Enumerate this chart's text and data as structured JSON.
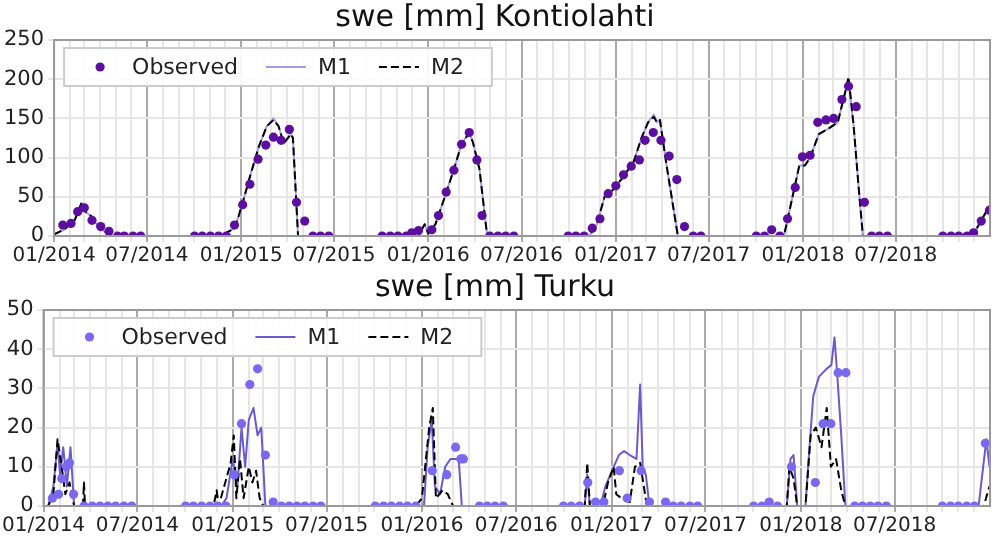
{
  "chart_data": [
    {
      "type": "line",
      "title": "swe [mm] Kontiolahti",
      "xlim": [
        "2014-01",
        "2019-01"
      ],
      "ylim": [
        0,
        250
      ],
      "yticks": [
        0,
        50,
        100,
        150,
        200,
        250
      ],
      "grid": true,
      "legend": "top left",
      "xticks": [
        {
          "value": "2014-01",
          "label": "01/2014"
        },
        {
          "value": "2014-02",
          "label": null
        },
        {
          "value": "2014-03",
          "label": null
        },
        {
          "value": "2014-04",
          "label": null
        },
        {
          "value": "2014-05",
          "label": null
        },
        {
          "value": "2014-06",
          "label": null
        },
        {
          "value": "2014-07",
          "label": "07/2014"
        },
        {
          "value": "2014-08",
          "label": null
        },
        {
          "value": "2014-09",
          "label": null
        },
        {
          "value": "2014-10",
          "label": null
        },
        {
          "value": "2014-11",
          "label": null
        },
        {
          "value": "2014-12",
          "label": null
        },
        {
          "value": "2015-01",
          "label": "01/2015"
        },
        {
          "value": "2015-02",
          "label": null
        },
        {
          "value": "2015-03",
          "label": null
        },
        {
          "value": "2015-04",
          "label": null
        },
        {
          "value": "2015-05",
          "label": null
        },
        {
          "value": "2015-06",
          "label": null
        },
        {
          "value": "2015-07",
          "label": "07/2015"
        },
        {
          "value": "2015-08",
          "label": null
        },
        {
          "value": "2015-09",
          "label": null
        },
        {
          "value": "2015-10",
          "label": null
        },
        {
          "value": "2015-11",
          "label": null
        },
        {
          "value": "2015-12",
          "label": null
        },
        {
          "value": "2016-01",
          "label": "01/2016"
        },
        {
          "value": "2016-02",
          "label": null
        },
        {
          "value": "2016-03",
          "label": null
        },
        {
          "value": "2016-04",
          "label": null
        },
        {
          "value": "2016-05",
          "label": null
        },
        {
          "value": "2016-06",
          "label": null
        },
        {
          "value": "2016-07",
          "label": "07/2016"
        },
        {
          "value": "2016-08",
          "label": null
        },
        {
          "value": "2016-09",
          "label": null
        },
        {
          "value": "2016-10",
          "label": null
        },
        {
          "value": "2016-11",
          "label": null
        },
        {
          "value": "2016-12",
          "label": null
        },
        {
          "value": "2017-01",
          "label": "01/2017"
        },
        {
          "value": "2017-02",
          "label": null
        },
        {
          "value": "2017-03",
          "label": null
        },
        {
          "value": "2017-04",
          "label": null
        },
        {
          "value": "2017-05",
          "label": null
        },
        {
          "value": "2017-06",
          "label": null
        },
        {
          "value": "2017-07",
          "label": "07/2017"
        },
        {
          "value": "2017-08",
          "label": null
        },
        {
          "value": "2017-09",
          "label": null
        },
        {
          "value": "2017-10",
          "label": null
        },
        {
          "value": "2017-11",
          "label": null
        },
        {
          "value": "2017-12",
          "label": null
        },
        {
          "value": "2018-01",
          "label": "01/2018"
        },
        {
          "value": "2018-02",
          "label": null
        },
        {
          "value": "2018-03",
          "label": null
        },
        {
          "value": "2018-04",
          "label": null
        },
        {
          "value": "2018-05",
          "label": null
        },
        {
          "value": "2018-06",
          "label": null
        },
        {
          "value": "2018-07",
          "label": "07/2018"
        },
        {
          "value": "2018-08",
          "label": null
        },
        {
          "value": "2018-09",
          "label": null
        },
        {
          "value": "2018-10",
          "label": null
        },
        {
          "value": "2018-11",
          "label": null
        },
        {
          "value": "2018-12",
          "label": null
        }
      ],
      "series": [
        {
          "name": "Observed",
          "type": "scatter",
          "marker": "circle",
          "color": "#5c0f9e",
          "x": [
            "2014-01-18",
            "2014-02-03",
            "2014-02-16",
            "2014-03-01",
            "2014-03-16",
            "2014-04-02",
            "2014-04-18",
            "2014-05-05",
            "2014-05-18",
            "2014-06-04",
            "2014-06-19",
            "2014-10-02",
            "2014-10-17",
            "2014-11-02",
            "2014-11-18",
            "2014-12-03",
            "2014-12-19",
            "2015-01-04",
            "2015-01-18",
            "2015-02-03",
            "2015-02-18",
            "2015-03-05",
            "2015-03-20",
            "2015-04-05",
            "2015-04-19",
            "2015-05-05",
            "2015-05-21",
            "2015-06-05",
            "2015-06-21",
            "2015-10-03",
            "2015-10-19",
            "2015-11-03",
            "2015-11-19",
            "2015-11-30",
            "2015-12-13",
            "2016-01-08",
            "2016-01-21",
            "2016-02-05",
            "2016-02-20",
            "2016-03-06",
            "2016-03-21",
            "2016-04-05",
            "2016-04-15",
            "2016-04-30",
            "2016-05-16",
            "2016-05-31",
            "2016-06-16",
            "2016-09-30",
            "2016-10-15",
            "2016-10-31",
            "2016-11-16",
            "2016-12-01",
            "2016-12-17",
            "2017-01-01",
            "2017-01-16",
            "2017-01-31",
            "2017-02-16",
            "2017-02-27",
            "2017-03-15",
            "2017-03-30",
            "2017-04-15",
            "2017-04-30",
            "2017-05-15",
            "2017-06-01",
            "2017-06-16",
            "2017-10-02",
            "2017-10-18",
            "2017-11-01",
            "2017-11-17",
            "2017-12-02",
            "2017-12-17",
            "2017-12-31",
            "2018-01-15",
            "2018-01-30",
            "2018-02-15",
            "2018-03-02",
            "2018-03-18",
            "2018-03-31",
            "2018-04-15",
            "2018-05-01",
            "2018-05-15",
            "2018-05-30",
            "2018-06-15",
            "2018-10-01",
            "2018-10-17",
            "2018-11-01",
            "2018-11-17",
            "2018-11-30",
            "2018-12-15",
            "2018-12-31"
          ],
          "values": [
            14,
            16,
            31,
            36,
            20,
            12,
            6,
            0,
            0,
            0,
            0,
            0,
            0,
            0,
            0,
            0,
            14,
            40,
            66,
            98,
            116,
            126,
            122,
            136,
            43,
            19,
            0,
            0,
            0,
            0,
            0,
            0,
            0,
            4,
            7,
            8,
            26,
            56,
            84,
            117,
            132,
            97,
            26,
            0,
            0,
            0,
            0,
            0,
            0,
            0,
            10,
            22,
            54,
            64,
            78,
            89,
            97,
            122,
            132,
            122,
            102,
            72,
            12,
            0,
            0,
            0,
            0,
            8,
            0,
            22,
            62,
            101,
            103,
            145,
            148,
            150,
            174,
            191,
            165,
            43,
            0,
            0,
            0,
            0,
            0,
            0,
            0,
            4,
            19,
            33
          ]
        },
        {
          "name": "M1",
          "type": "line",
          "marker": "none",
          "line_style": "solid",
          "color": "#a49be8",
          "x": [
            "2014-01-01",
            "2014-01-20",
            "2014-02-10",
            "2014-02-24",
            "2014-03-05",
            "2014-03-15",
            "2014-03-25",
            "2014-04-10",
            "2014-04-25",
            "2014-11-25",
            "2014-12-05",
            "2014-12-20",
            "2015-01-05",
            "2015-01-20",
            "2015-02-05",
            "2015-02-20",
            "2015-03-05",
            "2015-03-15",
            "2015-03-25",
            "2015-04-08",
            "2015-04-12",
            "2015-04-22",
            "2015-11-20",
            "2015-12-01",
            "2015-12-15",
            "2015-12-25",
            "2016-01-01",
            "2016-01-15",
            "2016-02-05",
            "2016-02-20",
            "2016-03-05",
            "2016-03-20",
            "2016-03-28",
            "2016-04-10",
            "2016-04-25",
            "2016-11-10",
            "2016-11-25",
            "2016-12-10",
            "2016-12-25",
            "2017-01-15",
            "2017-02-05",
            "2017-02-20",
            "2017-03-05",
            "2017-03-16",
            "2017-03-22",
            "2017-03-28",
            "2017-04-10",
            "2017-05-02",
            "2017-11-25",
            "2017-12-10",
            "2017-12-25",
            "2018-01-05",
            "2018-01-15",
            "2018-02-01",
            "2018-02-20",
            "2018-03-10",
            "2018-03-25",
            "2018-03-31",
            "2018-04-10",
            "2018-04-20",
            "2018-04-28",
            "2018-11-28",
            "2018-12-15",
            "2018-12-31"
          ],
          "values": [
            2,
            8,
            20,
            42,
            30,
            25,
            15,
            5,
            0,
            0,
            5,
            10,
            45,
            80,
            115,
            140,
            150,
            140,
            118,
            130,
            125,
            0,
            0,
            5,
            3,
            15,
            3,
            15,
            55,
            85,
            115,
            133,
            120,
            85,
            0,
            0,
            15,
            50,
            58,
            75,
            95,
            125,
            145,
            155,
            145,
            148,
            90,
            0,
            0,
            45,
            90,
            90,
            100,
            130,
            137,
            145,
            185,
            200,
            140,
            60,
            0,
            0,
            20,
            38
          ]
        },
        {
          "name": "M2",
          "type": "line",
          "marker": "none",
          "line_style": "dashed",
          "color": "#000000",
          "x": [
            "2014-01-01",
            "2014-01-20",
            "2014-02-10",
            "2014-02-24",
            "2014-03-05",
            "2014-03-15",
            "2014-03-25",
            "2014-04-10",
            "2014-04-25",
            "2014-11-25",
            "2014-12-05",
            "2014-12-20",
            "2015-01-05",
            "2015-01-20",
            "2015-02-05",
            "2015-02-20",
            "2015-03-05",
            "2015-03-15",
            "2015-03-25",
            "2015-04-08",
            "2015-04-12",
            "2015-04-22",
            "2015-11-20",
            "2015-12-01",
            "2015-12-15",
            "2015-12-25",
            "2016-01-01",
            "2016-01-15",
            "2016-02-05",
            "2016-02-20",
            "2016-03-05",
            "2016-03-20",
            "2016-03-28",
            "2016-04-10",
            "2016-04-25",
            "2016-11-10",
            "2016-11-25",
            "2016-12-10",
            "2016-12-25",
            "2017-01-15",
            "2017-02-05",
            "2017-02-20",
            "2017-03-05",
            "2017-03-16",
            "2017-03-22",
            "2017-03-28",
            "2017-04-10",
            "2017-05-02",
            "2017-11-25",
            "2017-12-10",
            "2017-12-25",
            "2018-01-05",
            "2018-01-15",
            "2018-02-01",
            "2018-02-20",
            "2018-03-10",
            "2018-03-25",
            "2018-03-31",
            "2018-04-10",
            "2018-04-20",
            "2018-04-28",
            "2018-11-28",
            "2018-12-15",
            "2018-12-31"
          ],
          "values": [
            2,
            8,
            20,
            43,
            30,
            25,
            15,
            5,
            0,
            0,
            5,
            10,
            45,
            80,
            115,
            140,
            148,
            140,
            118,
            130,
            125,
            0,
            0,
            5,
            3,
            15,
            3,
            15,
            55,
            85,
            115,
            131,
            120,
            85,
            0,
            0,
            15,
            50,
            58,
            75,
            95,
            125,
            145,
            152,
            145,
            148,
            90,
            0,
            0,
            45,
            90,
            90,
            100,
            130,
            137,
            145,
            185,
            203,
            140,
            60,
            0,
            0,
            20,
            38
          ]
        }
      ]
    },
    {
      "type": "line",
      "title": "swe [mm] Turku",
      "xlim": [
        "2014-01",
        "2019-01"
      ],
      "ylim": [
        0,
        50
      ],
      "yticks": [
        0,
        10,
        20,
        30,
        40,
        50
      ],
      "grid": true,
      "legend": "top left",
      "xticks": [
        {
          "value": "2014-01",
          "label": "01/2014"
        },
        {
          "value": "2014-02",
          "label": null
        },
        {
          "value": "2014-03",
          "label": null
        },
        {
          "value": "2014-04",
          "label": null
        },
        {
          "value": "2014-05",
          "label": null
        },
        {
          "value": "2014-06",
          "label": null
        },
        {
          "value": "2014-07",
          "label": "07/2014"
        },
        {
          "value": "2014-08",
          "label": null
        },
        {
          "value": "2014-09",
          "label": null
        },
        {
          "value": "2014-10",
          "label": null
        },
        {
          "value": "2014-11",
          "label": null
        },
        {
          "value": "2014-12",
          "label": null
        },
        {
          "value": "2015-01",
          "label": "01/2015"
        },
        {
          "value": "2015-02",
          "label": null
        },
        {
          "value": "2015-03",
          "label": null
        },
        {
          "value": "2015-04",
          "label": null
        },
        {
          "value": "2015-05",
          "label": null
        },
        {
          "value": "2015-06",
          "label": null
        },
        {
          "value": "2015-07",
          "label": "07/2015"
        },
        {
          "value": "2015-08",
          "label": null
        },
        {
          "value": "2015-09",
          "label": null
        },
        {
          "value": "2015-10",
          "label": null
        },
        {
          "value": "2015-11",
          "label": null
        },
        {
          "value": "2015-12",
          "label": null
        },
        {
          "value": "2016-01",
          "label": "01/2016"
        },
        {
          "value": "2016-02",
          "label": null
        },
        {
          "value": "2016-03",
          "label": null
        },
        {
          "value": "2016-04",
          "label": null
        },
        {
          "value": "2016-05",
          "label": null
        },
        {
          "value": "2016-06",
          "label": null
        },
        {
          "value": "2016-07",
          "label": "07/2016"
        },
        {
          "value": "2016-08",
          "label": null
        },
        {
          "value": "2016-09",
          "label": null
        },
        {
          "value": "2016-10",
          "label": null
        },
        {
          "value": "2016-11",
          "label": null
        },
        {
          "value": "2016-12",
          "label": null
        },
        {
          "value": "2017-01",
          "label": "01/2017"
        },
        {
          "value": "2017-02",
          "label": null
        },
        {
          "value": "2017-03",
          "label": null
        },
        {
          "value": "2017-04",
          "label": null
        },
        {
          "value": "2017-05",
          "label": null
        },
        {
          "value": "2017-06",
          "label": null
        },
        {
          "value": "2017-07",
          "label": "07/2017"
        },
        {
          "value": "2017-08",
          "label": null
        },
        {
          "value": "2017-09",
          "label": null
        },
        {
          "value": "2017-10",
          "label": null
        },
        {
          "value": "2017-11",
          "label": null
        },
        {
          "value": "2017-12",
          "label": null
        },
        {
          "value": "2018-01",
          "label": "01/2018"
        },
        {
          "value": "2018-02",
          "label": null
        },
        {
          "value": "2018-03",
          "label": null
        },
        {
          "value": "2018-04",
          "label": null
        },
        {
          "value": "2018-05",
          "label": null
        },
        {
          "value": "2018-06",
          "label": null
        },
        {
          "value": "2018-07",
          "label": "07/2018"
        },
        {
          "value": "2018-08",
          "label": null
        },
        {
          "value": "2018-09",
          "label": null
        },
        {
          "value": "2018-10",
          "label": null
        },
        {
          "value": "2018-11",
          "label": null
        },
        {
          "value": "2018-12",
          "label": null
        }
      ],
      "series": [
        {
          "name": "Observed",
          "type": "scatter",
          "marker": "circle",
          "color": "#7b68ee",
          "x": [
            "2014-01-18",
            "2014-01-30",
            "2014-02-05",
            "2014-02-14",
            "2014-02-20",
            "2014-02-28",
            "2014-03-20",
            "2014-04-05",
            "2014-04-20",
            "2014-05-05",
            "2014-05-20",
            "2014-06-05",
            "2014-06-20",
            "2014-10-02",
            "2014-10-17",
            "2014-11-02",
            "2014-11-18",
            "2014-12-03",
            "2014-12-19",
            "2015-01-04",
            "2015-01-18",
            "2015-02-03",
            "2015-02-18",
            "2015-03-05",
            "2015-03-20",
            "2015-04-05",
            "2015-04-20",
            "2015-05-05",
            "2015-05-20",
            "2015-06-05",
            "2015-06-20",
            "2015-10-03",
            "2015-10-19",
            "2015-11-03",
            "2015-11-19",
            "2015-12-04",
            "2015-12-20",
            "2016-01-21",
            "2016-02-18",
            "2016-03-06",
            "2016-03-16",
            "2016-03-21",
            "2016-04-21",
            "2016-05-06",
            "2016-05-21",
            "2016-06-06",
            "2016-09-30",
            "2016-10-15",
            "2016-10-31",
            "2016-11-16",
            "2016-12-01",
            "2016-12-17",
            "2017-01-16",
            "2017-01-31",
            "2017-02-27",
            "2017-03-15",
            "2017-04-15",
            "2017-04-30",
            "2017-05-15",
            "2017-06-01",
            "2017-06-16",
            "2017-10-02",
            "2017-10-18",
            "2017-11-01",
            "2017-11-17",
            "2017-12-14",
            "2018-01-29",
            "2018-02-13",
            "2018-02-28",
            "2018-03-14",
            "2018-03-29",
            "2018-04-15",
            "2018-04-30",
            "2018-05-15",
            "2018-05-30",
            "2018-06-15",
            "2018-10-01",
            "2018-10-17",
            "2018-11-01",
            "2018-11-17",
            "2018-12-02",
            "2018-12-23"
          ],
          "values": [
            2,
            3,
            7,
            10,
            11,
            3,
            0,
            0,
            0,
            0,
            0,
            0,
            0,
            0,
            0,
            0,
            0,
            0,
            0,
            8,
            21,
            31,
            35,
            13,
            1,
            0,
            0,
            0,
            0,
            0,
            0,
            0,
            0,
            0,
            0,
            0,
            0,
            9,
            8,
            15,
            12,
            12,
            0,
            0,
            0,
            0,
            0,
            0,
            0,
            6,
            1,
            1,
            9,
            2,
            9,
            1,
            1,
            0,
            0,
            0,
            0,
            0,
            0,
            1,
            0,
            10,
            6,
            21,
            21,
            34,
            34,
            0,
            0,
            0,
            0,
            0,
            0,
            0,
            0,
            0,
            0,
            16
          ]
        },
        {
          "name": "M1",
          "type": "line",
          "marker": "none",
          "line_style": "solid",
          "color": "#6a5acd",
          "x": [
            "2014-01-10",
            "2014-01-20",
            "2014-01-28",
            "2014-02-02",
            "2014-02-08",
            "2014-02-15",
            "2014-02-22",
            "2014-03-01",
            "2014-12-10",
            "2014-12-20",
            "2015-01-01",
            "2015-01-10",
            "2015-01-18",
            "2015-01-25",
            "2015-02-01",
            "2015-02-10",
            "2015-02-18",
            "2015-02-25",
            "2015-03-05",
            "2016-01-05",
            "2016-01-12",
            "2016-01-20",
            "2016-01-26",
            "2016-02-05",
            "2016-02-15",
            "2016-02-25",
            "2016-03-12",
            "2016-03-18",
            "2016-11-10",
            "2016-11-15",
            "2016-11-20",
            "2016-12-10",
            "2016-12-20",
            "2017-01-05",
            "2017-01-15",
            "2017-01-25",
            "2017-02-05",
            "2017-02-18",
            "2017-02-25",
            "2017-03-02",
            "2017-03-08",
            "2017-03-15",
            "2017-12-05",
            "2017-12-12",
            "2017-12-18",
            "2017-12-25",
            "2018-01-10",
            "2018-01-15",
            "2018-01-25",
            "2018-02-05",
            "2018-02-20",
            "2018-03-01",
            "2018-03-07",
            "2018-03-12",
            "2018-03-20",
            "2018-03-28",
            "2018-12-10",
            "2018-12-25",
            "2018-12-31"
          ],
          "values": [
            0,
            5,
            16,
            8,
            15,
            5,
            15,
            0,
            0,
            2,
            12,
            5,
            20,
            10,
            22,
            25,
            18,
            20,
            0,
            0,
            15,
            22,
            5,
            3,
            10,
            12,
            12,
            0,
            0,
            8,
            0,
            0,
            5,
            10,
            13,
            14,
            13,
            12,
            31,
            10,
            8,
            0,
            0,
            12,
            13,
            0,
            0,
            10,
            28,
            33,
            35,
            36,
            43,
            34,
            18,
            0,
            0,
            17,
            10
          ]
        },
        {
          "name": "M2",
          "type": "line",
          "marker": "none",
          "line_style": "dashed",
          "color": "#000000",
          "x": [
            "2014-01-10",
            "2014-01-20",
            "2014-01-28",
            "2014-02-05",
            "2014-02-12",
            "2014-02-20",
            "2014-03-01",
            "2014-03-18",
            "2014-03-20",
            "2014-03-22",
            "2014-11-25",
            "2014-12-01",
            "2014-12-05",
            "2014-12-28",
            "2015-01-03",
            "2015-01-08",
            "2015-01-15",
            "2015-01-22",
            "2015-02-01",
            "2015-02-08",
            "2015-02-15",
            "2015-02-22",
            "2015-03-01",
            "2015-12-20",
            "2016-01-01",
            "2016-01-15",
            "2016-01-22",
            "2016-01-28",
            "2016-02-10",
            "2016-02-20",
            "2016-03-01",
            "2016-11-10",
            "2016-11-15",
            "2016-11-20",
            "2016-12-15",
            "2016-12-25",
            "2017-01-05",
            "2017-01-10",
            "2017-01-20",
            "2017-02-05",
            "2017-02-15",
            "2017-02-25",
            "2017-03-10",
            "2017-12-05",
            "2017-12-10",
            "2017-12-18",
            "2017-12-25",
            "2018-01-10",
            "2018-01-20",
            "2018-01-30",
            "2018-02-10",
            "2018-02-20",
            "2018-02-28",
            "2018-03-10",
            "2018-03-20",
            "2018-03-28",
            "2018-12-20",
            "2018-12-31"
          ],
          "values": [
            0,
            3,
            17,
            10,
            3,
            6,
            0,
            0,
            6,
            0,
            0,
            4,
            0,
            11,
            18,
            2,
            12,
            2,
            10,
            6,
            9,
            2,
            0,
            0,
            2,
            20,
            25,
            2,
            4,
            3,
            0,
            0,
            11,
            0,
            0,
            6,
            10,
            3,
            2,
            1,
            10,
            11,
            0,
            0,
            10,
            7,
            0,
            0,
            18,
            20,
            15,
            25,
            10,
            12,
            4,
            0,
            0,
            5
          ]
        }
      ]
    }
  ]
}
